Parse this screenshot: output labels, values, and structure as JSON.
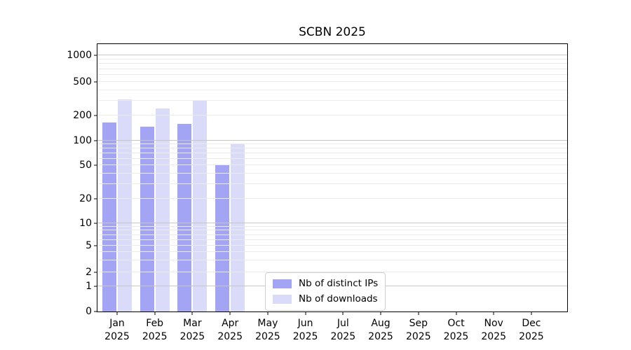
{
  "chart_data": {
    "type": "bar",
    "title": "SCBN 2025",
    "y_scale": "symlog",
    "ylim": [
      0,
      1300
    ],
    "y_ticks": [
      0,
      1,
      2,
      5,
      10,
      20,
      50,
      100,
      200,
      500,
      1000
    ],
    "grid": "horizontal major+minor, drawn above bars",
    "legend_position": "inside lower-center",
    "categories": [
      {
        "month": "Jan",
        "year": "2025"
      },
      {
        "month": "Feb",
        "year": "2025"
      },
      {
        "month": "Mar",
        "year": "2025"
      },
      {
        "month": "Apr",
        "year": "2025"
      },
      {
        "month": "May",
        "year": "2025"
      },
      {
        "month": "Jun",
        "year": "2025"
      },
      {
        "month": "Jul",
        "year": "2025"
      },
      {
        "month": "Aug",
        "year": "2025"
      },
      {
        "month": "Sep",
        "year": "2025"
      },
      {
        "month": "Oct",
        "year": "2025"
      },
      {
        "month": "Nov",
        "year": "2025"
      },
      {
        "month": "Dec",
        "year": "2025"
      }
    ],
    "series": [
      {
        "key": "distinct-ips",
        "name": "Nb of distinct IPs",
        "color": "#a4a4f4",
        "values": [
          164,
          147,
          158,
          50,
          null,
          null,
          null,
          null,
          null,
          null,
          null,
          null
        ]
      },
      {
        "key": "downloads",
        "name": "Nb of downloads",
        "color": "#dadaf9",
        "values": [
          310,
          240,
          300,
          93,
          null,
          null,
          null,
          null,
          null,
          null,
          null,
          null
        ]
      }
    ],
    "colors": {
      "axis": "#000000",
      "grid_major": "#c6c6c6",
      "grid_minor": "#ebebeb",
      "background": "#ffffff"
    }
  }
}
